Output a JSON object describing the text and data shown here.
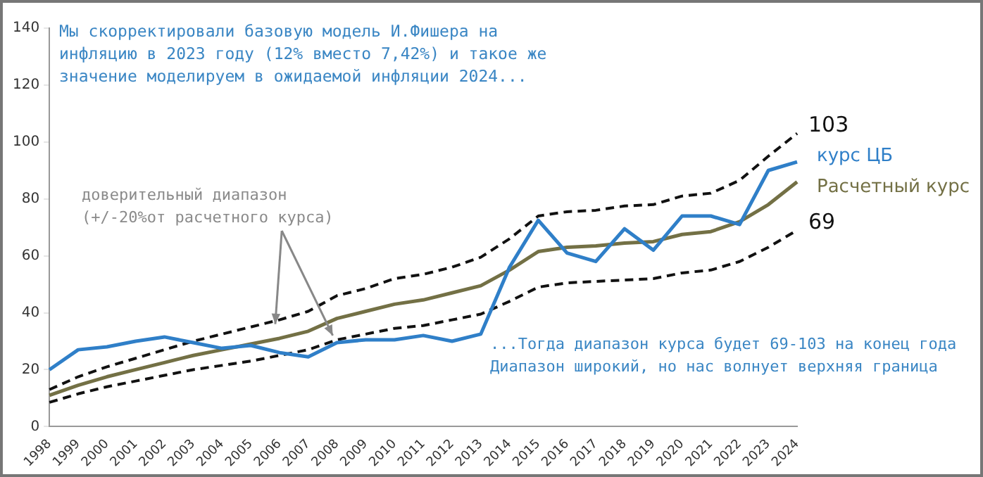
{
  "chart_data": {
    "type": "line",
    "categories": [
      "1998",
      "1999",
      "2000",
      "2001",
      "2002",
      "2003",
      "2004",
      "2005",
      "2006",
      "2007",
      "2008",
      "2009",
      "2010",
      "2011",
      "2012",
      "2013",
      "2014",
      "2015",
      "2016",
      "2017",
      "2018",
      "2019",
      "2020",
      "2021",
      "2022",
      "2023",
      "2024"
    ],
    "series": [
      {
        "name": "курс ЦБ",
        "color": "#2f7fc8",
        "values": [
          20,
          27,
          28,
          30,
          31.5,
          29.5,
          27.5,
          28.5,
          26,
          24.5,
          29.5,
          30.5,
          30.5,
          32,
          30,
          32.5,
          56,
          72.5,
          61,
          58,
          69.5,
          62,
          74,
          74,
          71,
          90,
          93
        ]
      },
      {
        "name": "Расчетный курс",
        "color": "#737045",
        "values": [
          11,
          14.5,
          17.5,
          20,
          22.5,
          25,
          27,
          29,
          31,
          33.5,
          38,
          40.5,
          43,
          44.5,
          47,
          49.5,
          55,
          61.5,
          63,
          63.5,
          64.5,
          65,
          67.5,
          68.5,
          72,
          78,
          86
        ]
      },
      {
        "color": "#111111",
        "line_style": "dashed",
        "values": [
          13,
          17.5,
          21,
          24,
          27,
          30,
          32.5,
          35,
          37.5,
          40.5,
          46,
          48.5,
          52,
          53.5,
          56,
          59.5,
          66,
          74,
          75.5,
          76,
          77.5,
          78,
          81,
          82,
          86.5,
          95,
          103
        ],
        "value_labels": [
          null,
          null,
          null,
          null,
          null,
          null,
          null,
          null,
          null,
          null,
          null,
          null,
          null,
          null,
          null,
          null,
          null,
          null,
          null,
          null,
          null,
          null,
          null,
          null,
          null,
          null,
          "103"
        ]
      },
      {
        "color": "#111111",
        "line_style": "dashed",
        "values": [
          8.5,
          11.5,
          14,
          16,
          18,
          20,
          21.5,
          23,
          25,
          27,
          30.5,
          32.5,
          34.5,
          35.5,
          37.5,
          39.5,
          44,
          49,
          50.5,
          51,
          51.5,
          52,
          54,
          55,
          58,
          63,
          69
        ],
        "value_labels": [
          null,
          null,
          null,
          null,
          null,
          null,
          null,
          null,
          null,
          null,
          null,
          null,
          null,
          null,
          null,
          null,
          null,
          null,
          null,
          null,
          null,
          null,
          null,
          null,
          null,
          null,
          "69"
        ]
      }
    ],
    "ylim": [
      0,
      140
    ],
    "yticks": [
      0,
      20,
      40,
      60,
      80,
      100,
      120,
      140
    ],
    "grid": false,
    "legend": false,
    "marker": "none",
    "annotations": [
      "Мы скорректировали базовую модель И.Фишера на\nинфляцию в 2023 году (12% вместо 7,42%) и такое же\nзначение моделируем в ожидаемой инфляции 2024...",
      {
        "text": "доверительный диапазон\n(+/-20%от расчетного курса)",
        "x": "2006",
        "y": 37.5
      },
      "...Тогда диапазон курса будет 69-103 на конец года\nДиапазон широкий, но нас волнует верхняя граница"
    ]
  }
}
